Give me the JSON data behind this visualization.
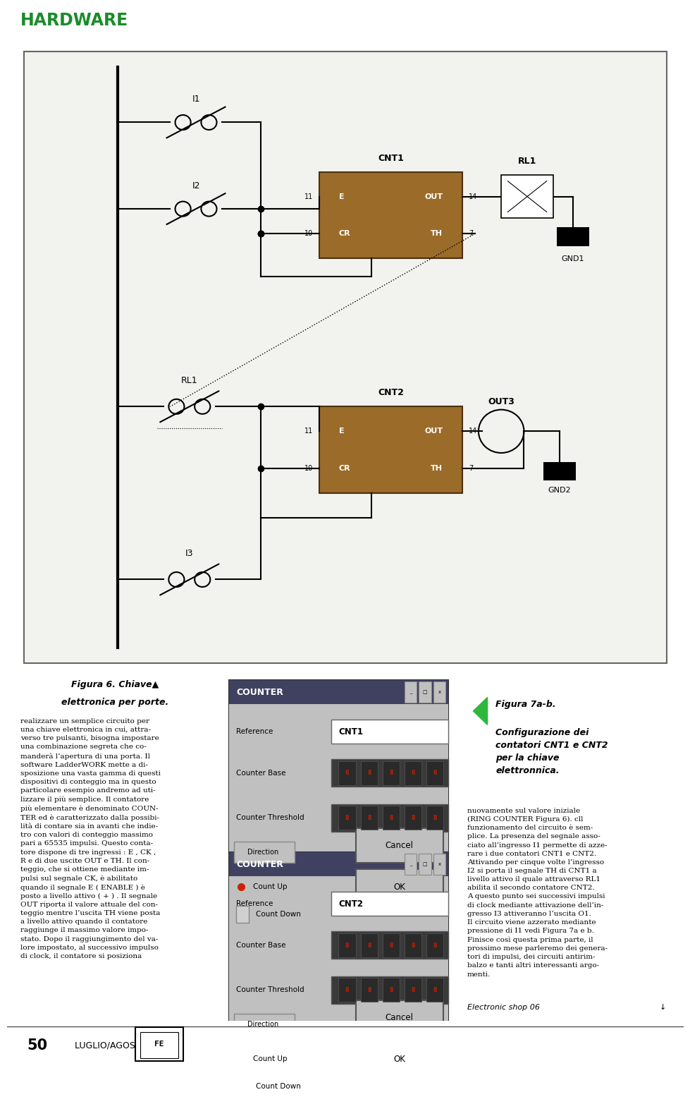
{
  "header_text": "HARDWARE",
  "header_color": "#1a8c2a",
  "green_bar_color": "#2db83d",
  "page_bg": "#ffffff",
  "circuit_bg": "#f2f2ee",
  "counter_box_color": "#9b6b2a",
  "counter_border": "#4a3010",
  "line_color": "#000000",
  "fig_caption_left_line1": "Figura 6. Chiave▲",
  "fig_caption_left_line2": "elettronica per porte.",
  "fig_caption_right_title": "Figura 7a-b.",
  "fig_caption_right_body": "Configurazione dei\ncontatori CNT1 e CNT2\nper la chiave\nelettronnica.",
  "left_col_text": "realizzare un semplice circuito per\nuna chiave elettronica in cui, attra-\nverso tre pulsanti, bisogna impostare\nuna combinazione segreta che co-\nmanderà l’apertura di una porta. Il\nsoftware LadderWORK mette a di-\nsposizione una vasta gamma di questi\ndispositivi di conteggio ma in questo\nparticolare esempio andremo ad uti-\nlizzare il più semplice. Il contatore\npiù elementare è denominato COUN-\nTER ed è caratterizzato dalla possibi-\nlità di contare sia in avanti che indie-\ntro con valori di conteggio massimo\npari a 65535 impulsi. Questo conta-\ntore dispone di tre ingressi : E , CK ,\nR e di due uscite OUT e TH. Il con-\nteggio, che si ottiene mediante im-\npulsi sul segnale CK, è abilitato\nquando il segnale E ( ENABLE ) è\nposto a livello attivo ( + ) . Il segnale\nOUT riporta il valore attuale del con-\nteggio mentre l’uscita TH viene posta\na livello attivo quando il contatore\nraggiunge il massimo valore impo-\nstato. Dopo il raggiungimento del va-\nlore impostato, al successivo impulso\ndi clock, il contatore si posiziona",
  "right_col_text": "nuovamente sul valore iniziale\n(RING COUNTER Figura 6). cll\nfunzionamento del circuito è sem-\nplice. La presenza del segnale asso-\nciato all’ingresso I1 permette di azze-\nrare i due contatori CNT1 e CNT2.\nAttivando per cinque volte l’ingresso\nI2 si porta il segnale TH di CNT1 a\nlivello attivo il quale attraverso RL1\nabilita il secondo contatore CNT2.\nA questo punto sei successivi impulsi\ndi clock mediante attivazione dell’in-\ngresso I3 attiveranno l’uscita O1.\nIl circuito viene azzerato mediante\npressione di I1 vedi Figura 7a e b.\nFinisce così questa prima parte, il\nprossimo mese parleremo dei genera-\ntori di impulsi, dei circuiti antirim-\nbalzo e tanti altri interessanti argo-\nmenti.",
  "footer_page": "50",
  "footer_text": "LUGLIO/AGOSTO  2002"
}
